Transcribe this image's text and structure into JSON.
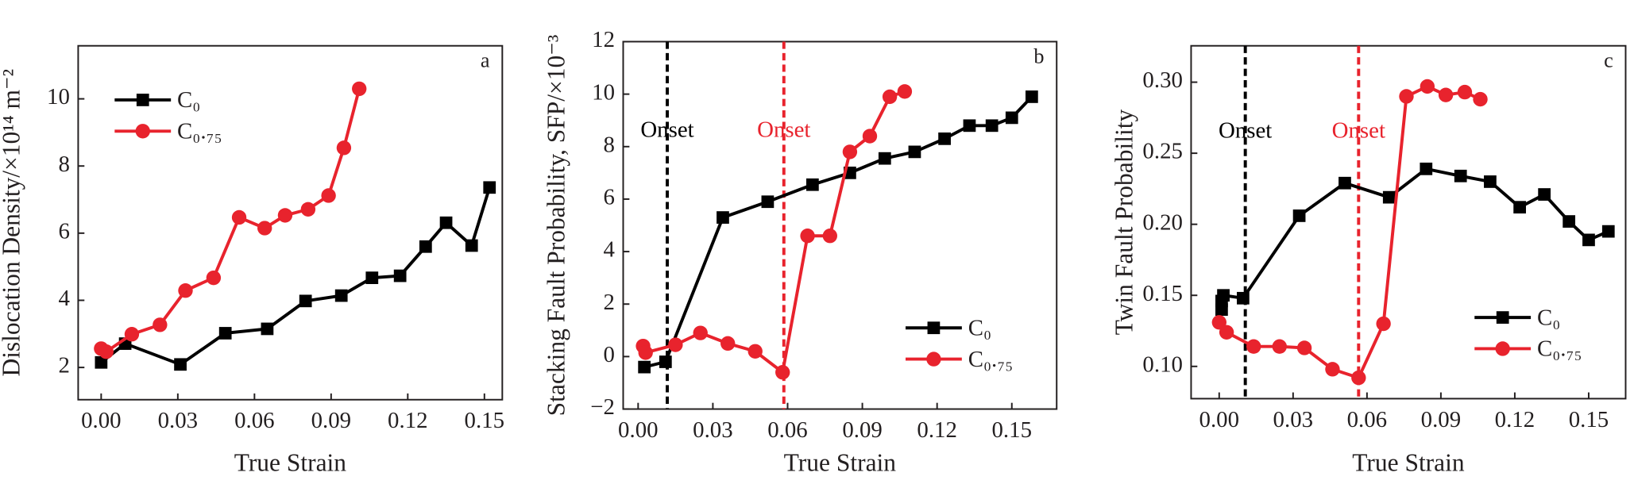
{
  "chart_data": [
    {
      "type": "line",
      "panel_label": "a",
      "x_label": "True Strain",
      "y_label": "Dislocation Density/×10¹⁴ m⁻²",
      "xlim": [
        -0.009,
        0.157
      ],
      "ylim": [
        1.04,
        11.58
      ],
      "xticks": [
        {
          "value": 0,
          "label": "0.00"
        },
        {
          "value": 0.03,
          "label": "0.03"
        },
        {
          "value": 0.06,
          "label": "0.06"
        },
        {
          "value": 0.09,
          "label": "0.09"
        },
        {
          "value": 0.12,
          "label": "0.12"
        },
        {
          "value": 0.15,
          "label": "0.15"
        }
      ],
      "yticks": [
        2,
        4,
        6,
        8,
        10
      ],
      "legend": "upper-left",
      "series": [
        {
          "name": "C₀",
          "color": "#000000",
          "marker": "square",
          "x": [
            0.0,
            0.0094,
            0.031,
            0.0486,
            0.065,
            0.08,
            0.094,
            0.106,
            0.117,
            0.127,
            0.135,
            0.145,
            0.152
          ],
          "values": [
            2.15,
            2.71,
            2.09,
            3.02,
            3.15,
            3.98,
            4.14,
            4.67,
            4.73,
            5.6,
            6.31,
            5.63,
            7.36
          ]
        },
        {
          "name": "C₀.₇₅",
          "color": "#e8232d",
          "marker": "circle",
          "x": [
            0.0,
            0.002,
            0.012,
            0.023,
            0.033,
            0.044,
            0.054,
            0.064,
            0.072,
            0.081,
            0.089,
            0.095,
            0.101
          ],
          "values": [
            2.56,
            2.47,
            2.99,
            3.27,
            4.29,
            4.67,
            6.47,
            6.15,
            6.53,
            6.71,
            7.12,
            8.54,
            10.3
          ]
        }
      ]
    },
    {
      "type": "line",
      "panel_label": "b",
      "x_label": "True Strain",
      "y_label": "Stacking Fault Probability, SFP/×10⁻³",
      "xlim": [
        -0.006,
        0.168
      ],
      "ylim": [
        -2,
        12
      ],
      "xticks": [
        {
          "value": 0,
          "label": "0.00"
        },
        {
          "value": 0.03,
          "label": "0.03"
        },
        {
          "value": 0.06,
          "label": "0.06"
        },
        {
          "value": 0.09,
          "label": "0.09"
        },
        {
          "value": 0.12,
          "label": "0.12"
        },
        {
          "value": 0.15,
          "label": "0.15"
        }
      ],
      "yticks": [
        {
          "value": -2,
          "label": "−2"
        },
        0,
        2,
        4,
        6,
        8,
        10,
        12
      ],
      "legend": "lower-right",
      "annotations": [
        {
          "text": "Onset",
          "x": 0.0117,
          "color": "#000000"
        },
        {
          "text": "Onset",
          "x": 0.0585,
          "color": "#e8232d"
        }
      ],
      "series": [
        {
          "name": "C₀",
          "color": "#000000",
          "marker": "square",
          "x": [
            0.0025,
            0.011,
            0.034,
            0.052,
            0.07,
            0.085,
            0.099,
            0.111,
            0.123,
            0.133,
            0.142,
            0.15,
            0.158
          ],
          "values": [
            -0.4,
            -0.2,
            5.3,
            5.9,
            6.55,
            7.0,
            7.55,
            7.8,
            8.3,
            8.8,
            8.8,
            9.1,
            9.9
          ]
        },
        {
          "name": "C₀.₇₅",
          "color": "#e8232d",
          "marker": "circle",
          "x": [
            0.002,
            0.003,
            0.015,
            0.025,
            0.036,
            0.047,
            0.058,
            0.068,
            0.077,
            0.085,
            0.093,
            0.101,
            0.107
          ],
          "values": [
            0.4,
            0.15,
            0.45,
            0.9,
            0.5,
            0.2,
            -0.6,
            4.6,
            4.6,
            7.8,
            8.4,
            9.9,
            10.1
          ]
        }
      ]
    },
    {
      "type": "line",
      "panel_label": "c",
      "x_label": "True Strain",
      "y_label": "Twin Fault Probability",
      "xlim": [
        -0.0114,
        0.165
      ],
      "ylim": [
        0.0773,
        0.3256
      ],
      "xticks": [
        {
          "value": 0,
          "label": "0.00"
        },
        {
          "value": 0.03,
          "label": "0.03"
        },
        {
          "value": 0.06,
          "label": "0.06"
        },
        {
          "value": 0.09,
          "label": "0.09"
        },
        {
          "value": 0.12,
          "label": "0.12"
        },
        {
          "value": 0.15,
          "label": "0.15"
        }
      ],
      "yticks": [
        {
          "value": 0.1,
          "label": "0.10"
        },
        0.15,
        {
          "value": 0.2,
          "label": "0.20"
        },
        0.25,
        {
          "value": 0.3,
          "label": "0.30"
        }
      ],
      "legend": "lower-right",
      "annotations": [
        {
          "text": "Onset",
          "x": 0.0106,
          "color": "#000000"
        },
        {
          "text": "Onset",
          "x": 0.0566,
          "color": "#e8232d"
        }
      ],
      "series": [
        {
          "name": "C₀",
          "color": "#000000",
          "marker": "square",
          "x": [
            0.001,
            0.001,
            0.0017,
            0.0097,
            0.0325,
            0.051,
            0.069,
            0.084,
            0.098,
            0.11,
            0.122,
            0.132,
            0.142,
            0.15,
            0.158
          ],
          "values": [
            0.14,
            0.146,
            0.15,
            0.148,
            0.206,
            0.229,
            0.219,
            0.239,
            0.234,
            0.23,
            0.212,
            0.221,
            0.202,
            0.189,
            0.195
          ]
        },
        {
          "name": "C₀.₇₅",
          "color": "#e8232d",
          "marker": "circle",
          "x": [
            0.0,
            0.003,
            0.014,
            0.0245,
            0.0346,
            0.046,
            0.0566,
            0.0667,
            0.076,
            0.0845,
            0.092,
            0.0997,
            0.106
          ],
          "values": [
            0.131,
            0.124,
            0.114,
            0.114,
            0.113,
            0.098,
            0.092,
            0.13,
            0.29,
            0.297,
            0.291,
            0.293,
            0.288
          ]
        }
      ]
    }
  ]
}
